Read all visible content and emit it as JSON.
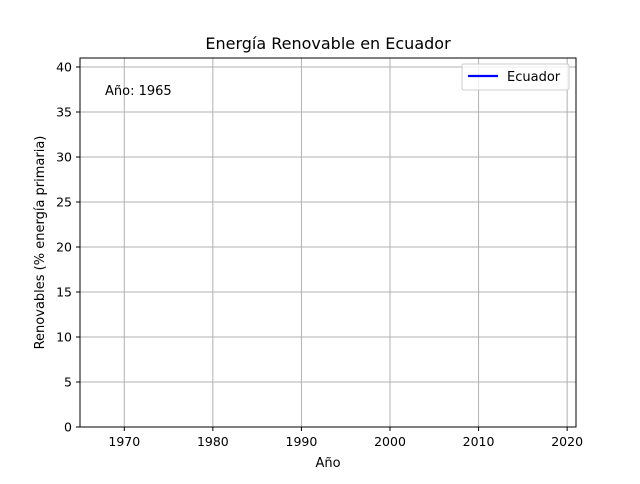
{
  "chart_data": {
    "type": "line",
    "title": "Energía Renovable en Ecuador",
    "xlabel": "Año",
    "ylabel": "Renovables (% energía primaria)",
    "xlim": [
      1965,
      2021
    ],
    "ylim": [
      0,
      41
    ],
    "x_ticks": [
      1970,
      1980,
      1990,
      2000,
      2010,
      2020
    ],
    "y_ticks": [
      0,
      5,
      10,
      15,
      20,
      25,
      30,
      35,
      40
    ],
    "grid": true,
    "legend_position": "top-right",
    "annotation": "Año: 1965",
    "series": [
      {
        "name": "Ecuador",
        "color": "#0000ff",
        "x": [],
        "y": []
      }
    ]
  }
}
